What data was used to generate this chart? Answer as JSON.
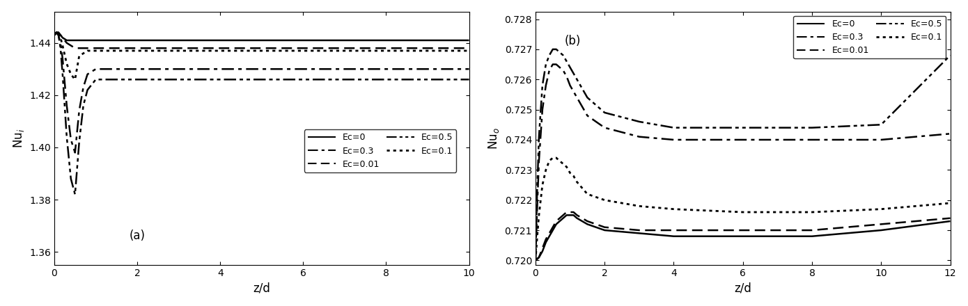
{
  "subplot_a": {
    "xlabel": "z/d",
    "ylabel": "Nu_i",
    "label_a": "(a)",
    "xlim": [
      0,
      10
    ],
    "ylim": [
      1.355,
      1.452
    ],
    "yticks": [
      1.36,
      1.38,
      1.4,
      1.42,
      1.44
    ],
    "xticks": [
      0,
      2,
      4,
      6,
      8,
      10
    ],
    "curves": [
      {
        "label": "Ec=0",
        "style": "solid",
        "lw": 1.8,
        "color": "#000000",
        "x": [
          0,
          0.05,
          0.1,
          0.15,
          0.2,
          0.3,
          0.4,
          0.5,
          0.6,
          0.7,
          0.8,
          1.0,
          1.2,
          1.5,
          2.0,
          3.0,
          4.0,
          6.0,
          8.0,
          10.0
        ],
        "y": [
          1.443,
          1.444,
          1.444,
          1.443,
          1.442,
          1.441,
          1.441,
          1.441,
          1.441,
          1.441,
          1.441,
          1.441,
          1.441,
          1.441,
          1.441,
          1.441,
          1.441,
          1.441,
          1.441,
          1.441
        ]
      },
      {
        "label": "Ec=0.01",
        "style": "dashed",
        "lw": 1.8,
        "color": "#000000",
        "x": [
          0,
          0.05,
          0.1,
          0.15,
          0.2,
          0.3,
          0.4,
          0.5,
          0.6,
          0.7,
          0.8,
          1.0,
          1.2,
          1.5,
          2.0,
          3.0,
          4.0,
          6.0,
          8.0,
          10.0
        ],
        "y": [
          1.443,
          1.444,
          1.444,
          1.443,
          1.442,
          1.44,
          1.439,
          1.438,
          1.438,
          1.438,
          1.438,
          1.438,
          1.438,
          1.438,
          1.438,
          1.438,
          1.438,
          1.438,
          1.438,
          1.438
        ]
      },
      {
        "label": "Ec=0.1",
        "style": "dotted",
        "lw": 2.0,
        "color": "#000000",
        "x": [
          0,
          0.05,
          0.1,
          0.15,
          0.2,
          0.3,
          0.4,
          0.5,
          0.6,
          0.7,
          0.8,
          1.0,
          1.2,
          1.5,
          2.0,
          3.0,
          4.0,
          6.0,
          8.0,
          10.0
        ],
        "y": [
          1.443,
          1.444,
          1.444,
          1.442,
          1.439,
          1.432,
          1.428,
          1.426,
          1.435,
          1.436,
          1.437,
          1.437,
          1.437,
          1.437,
          1.437,
          1.437,
          1.437,
          1.437,
          1.437,
          1.437
        ]
      },
      {
        "label": "Ec=0.3",
        "style": "dashdot",
        "lw": 1.8,
        "color": "#000000",
        "x": [
          0,
          0.05,
          0.1,
          0.15,
          0.2,
          0.3,
          0.4,
          0.5,
          0.6,
          0.7,
          0.8,
          1.0,
          1.2,
          1.5,
          2.0,
          3.0,
          4.0,
          6.0,
          8.0,
          10.0
        ],
        "y": [
          1.443,
          1.444,
          1.443,
          1.44,
          1.434,
          1.416,
          1.403,
          1.398,
          1.414,
          1.423,
          1.428,
          1.43,
          1.43,
          1.43,
          1.43,
          1.43,
          1.43,
          1.43,
          1.43,
          1.43
        ]
      },
      {
        "label": "Ec=0.5",
        "style": "dashdotdotted",
        "lw": 1.8,
        "color": "#000000",
        "x": [
          0,
          0.05,
          0.1,
          0.15,
          0.2,
          0.3,
          0.4,
          0.5,
          0.6,
          0.7,
          0.8,
          1.0,
          1.2,
          1.5,
          2.0,
          3.0,
          4.0,
          6.0,
          8.0,
          10.0
        ],
        "y": [
          1.443,
          1.444,
          1.443,
          1.438,
          1.428,
          1.404,
          1.388,
          1.382,
          1.402,
          1.416,
          1.422,
          1.426,
          1.426,
          1.426,
          1.426,
          1.426,
          1.426,
          1.426,
          1.426,
          1.426
        ]
      }
    ]
  },
  "subplot_b": {
    "xlabel": "z/d",
    "ylabel": "Nu_o",
    "label_b": "(b)",
    "xlim": [
      0,
      12
    ],
    "ylim": [
      0.71985,
      0.72825
    ],
    "yticks": [
      0.72,
      0.721,
      0.722,
      0.723,
      0.724,
      0.725,
      0.726,
      0.727,
      0.728
    ],
    "xticks": [
      0,
      2,
      4,
      6,
      8,
      10,
      12
    ],
    "curves": [
      {
        "label": "Ec=0",
        "style": "solid",
        "lw": 1.8,
        "color": "#000000",
        "x": [
          0,
          0.1,
          0.2,
          0.3,
          0.4,
          0.5,
          0.6,
          0.7,
          0.8,
          0.9,
          1.0,
          1.1,
          1.2,
          1.5,
          2.0,
          3.0,
          4.0,
          6.0,
          8.0,
          10.0,
          12.0
        ],
        "y": [
          0.72,
          0.7201,
          0.7203,
          0.7206,
          0.7208,
          0.721,
          0.7212,
          0.7213,
          0.7214,
          0.7215,
          0.7215,
          0.7215,
          0.7214,
          0.7212,
          0.721,
          0.7209,
          0.7208,
          0.7208,
          0.7208,
          0.721,
          0.7213
        ]
      },
      {
        "label": "Ec=0.01",
        "style": "dashed",
        "lw": 1.8,
        "color": "#000000",
        "x": [
          0,
          0.1,
          0.2,
          0.3,
          0.4,
          0.5,
          0.6,
          0.7,
          0.8,
          0.9,
          1.0,
          1.1,
          1.2,
          1.5,
          2.0,
          3.0,
          4.0,
          6.0,
          8.0,
          10.0,
          12.0
        ],
        "y": [
          0.72,
          0.7201,
          0.7204,
          0.7207,
          0.7209,
          0.7211,
          0.7213,
          0.7214,
          0.7215,
          0.7216,
          0.7216,
          0.7216,
          0.7215,
          0.7213,
          0.7211,
          0.721,
          0.721,
          0.721,
          0.721,
          0.7212,
          0.7214
        ]
      },
      {
        "label": "Ec=0.1",
        "style": "dotted",
        "lw": 2.0,
        "color": "#000000",
        "x": [
          0,
          0.05,
          0.1,
          0.2,
          0.3,
          0.4,
          0.5,
          0.6,
          0.7,
          0.8,
          0.9,
          1.0,
          1.1,
          1.2,
          1.5,
          2.0,
          3.0,
          4.0,
          6.0,
          8.0,
          10.0,
          12.0
        ],
        "y": [
          0.72,
          0.7208,
          0.7215,
          0.7225,
          0.723,
          0.7233,
          0.7234,
          0.7234,
          0.7233,
          0.7232,
          0.7231,
          0.7229,
          0.7228,
          0.7226,
          0.7222,
          0.722,
          0.7218,
          0.7217,
          0.7216,
          0.7216,
          0.7217,
          0.7219
        ]
      },
      {
        "label": "Ec=0.3",
        "style": "dashdot",
        "lw": 1.8,
        "color": "#000000",
        "x": [
          0,
          0.05,
          0.1,
          0.2,
          0.3,
          0.4,
          0.5,
          0.6,
          0.7,
          0.8,
          0.9,
          1.0,
          1.1,
          1.2,
          1.5,
          2.0,
          3.0,
          4.0,
          6.0,
          8.0,
          10.0,
          12.0
        ],
        "y": [
          0.72,
          0.7218,
          0.7233,
          0.725,
          0.7258,
          0.7263,
          0.7265,
          0.7265,
          0.7264,
          0.7263,
          0.7261,
          0.7258,
          0.7256,
          0.7254,
          0.7248,
          0.7244,
          0.7241,
          0.724,
          0.724,
          0.724,
          0.724,
          0.7242
        ]
      },
      {
        "label": "Ec=0.5",
        "style": "dashdotdotted",
        "lw": 1.8,
        "color": "#000000",
        "x": [
          0,
          0.05,
          0.1,
          0.2,
          0.3,
          0.4,
          0.5,
          0.6,
          0.7,
          0.8,
          0.9,
          1.0,
          1.1,
          1.2,
          1.5,
          2.0,
          3.0,
          4.0,
          6.0,
          8.0,
          10.0,
          12.0
        ],
        "y": [
          0.72,
          0.7224,
          0.7241,
          0.7258,
          0.7265,
          0.7268,
          0.727,
          0.727,
          0.7269,
          0.7268,
          0.7266,
          0.7264,
          0.7262,
          0.726,
          0.7254,
          0.7249,
          0.7246,
          0.7244,
          0.7244,
          0.7244,
          0.7245,
          0.7268
        ]
      }
    ]
  },
  "figure_bg": "#ffffff"
}
